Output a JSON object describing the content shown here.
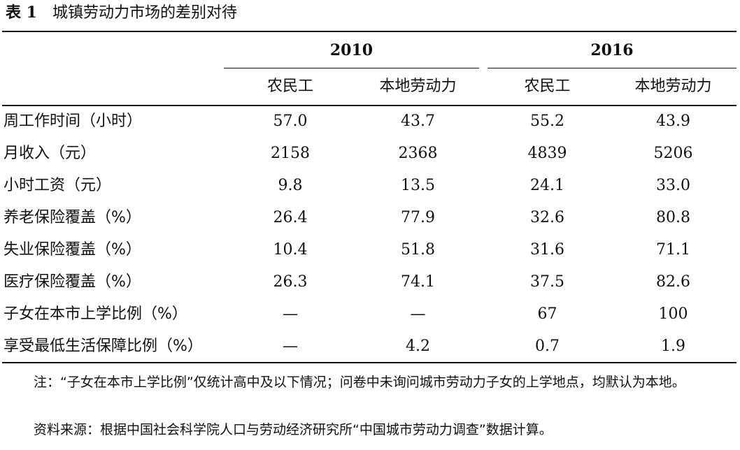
{
  "caption": {
    "number": "表 1",
    "title": "城镇劳动力市场的差别对待"
  },
  "header": {
    "years": [
      "2010",
      "2016"
    ],
    "groups": [
      "农民工",
      "本地劳动力",
      "农民工",
      "本地劳动力"
    ]
  },
  "rows": [
    {
      "label": "周工作时间（小时）",
      "values": [
        "57.0",
        "43.7",
        "55.2",
        "43.9"
      ]
    },
    {
      "label": "月收入（元）",
      "values": [
        "2158",
        "2368",
        "4839",
        "5206"
      ]
    },
    {
      "label": "小时工资（元）",
      "values": [
        "9.8",
        "13.5",
        "24.1",
        "33.0"
      ]
    },
    {
      "label": "养老保险覆盖（%）",
      "values": [
        "26.4",
        "77.9",
        "32.6",
        "80.8"
      ]
    },
    {
      "label": "失业保险覆盖（%）",
      "values": [
        "10.4",
        "51.8",
        "31.6",
        "71.1"
      ]
    },
    {
      "label": "医疗保险覆盖（%）",
      "values": [
        "26.3",
        "74.1",
        "37.5",
        "82.6"
      ]
    },
    {
      "label": "子女在本市上学比例（%）",
      "values": [
        "—",
        "—",
        "67",
        "100"
      ]
    },
    {
      "label": "享受最低生活保障比例（%）",
      "values": [
        "—",
        "4.2",
        "0.7",
        "1.9"
      ]
    }
  ],
  "notes": {
    "note": "注：“子女在本市上学比例”仅统计高中及以下情况；问卷中未询问城市劳动力子女的上学地点，均默认为本地。",
    "source": "资料来源：根据中国社会科学院人口与劳动经济研究所“中国城市劳动力调查”数据计算。"
  }
}
